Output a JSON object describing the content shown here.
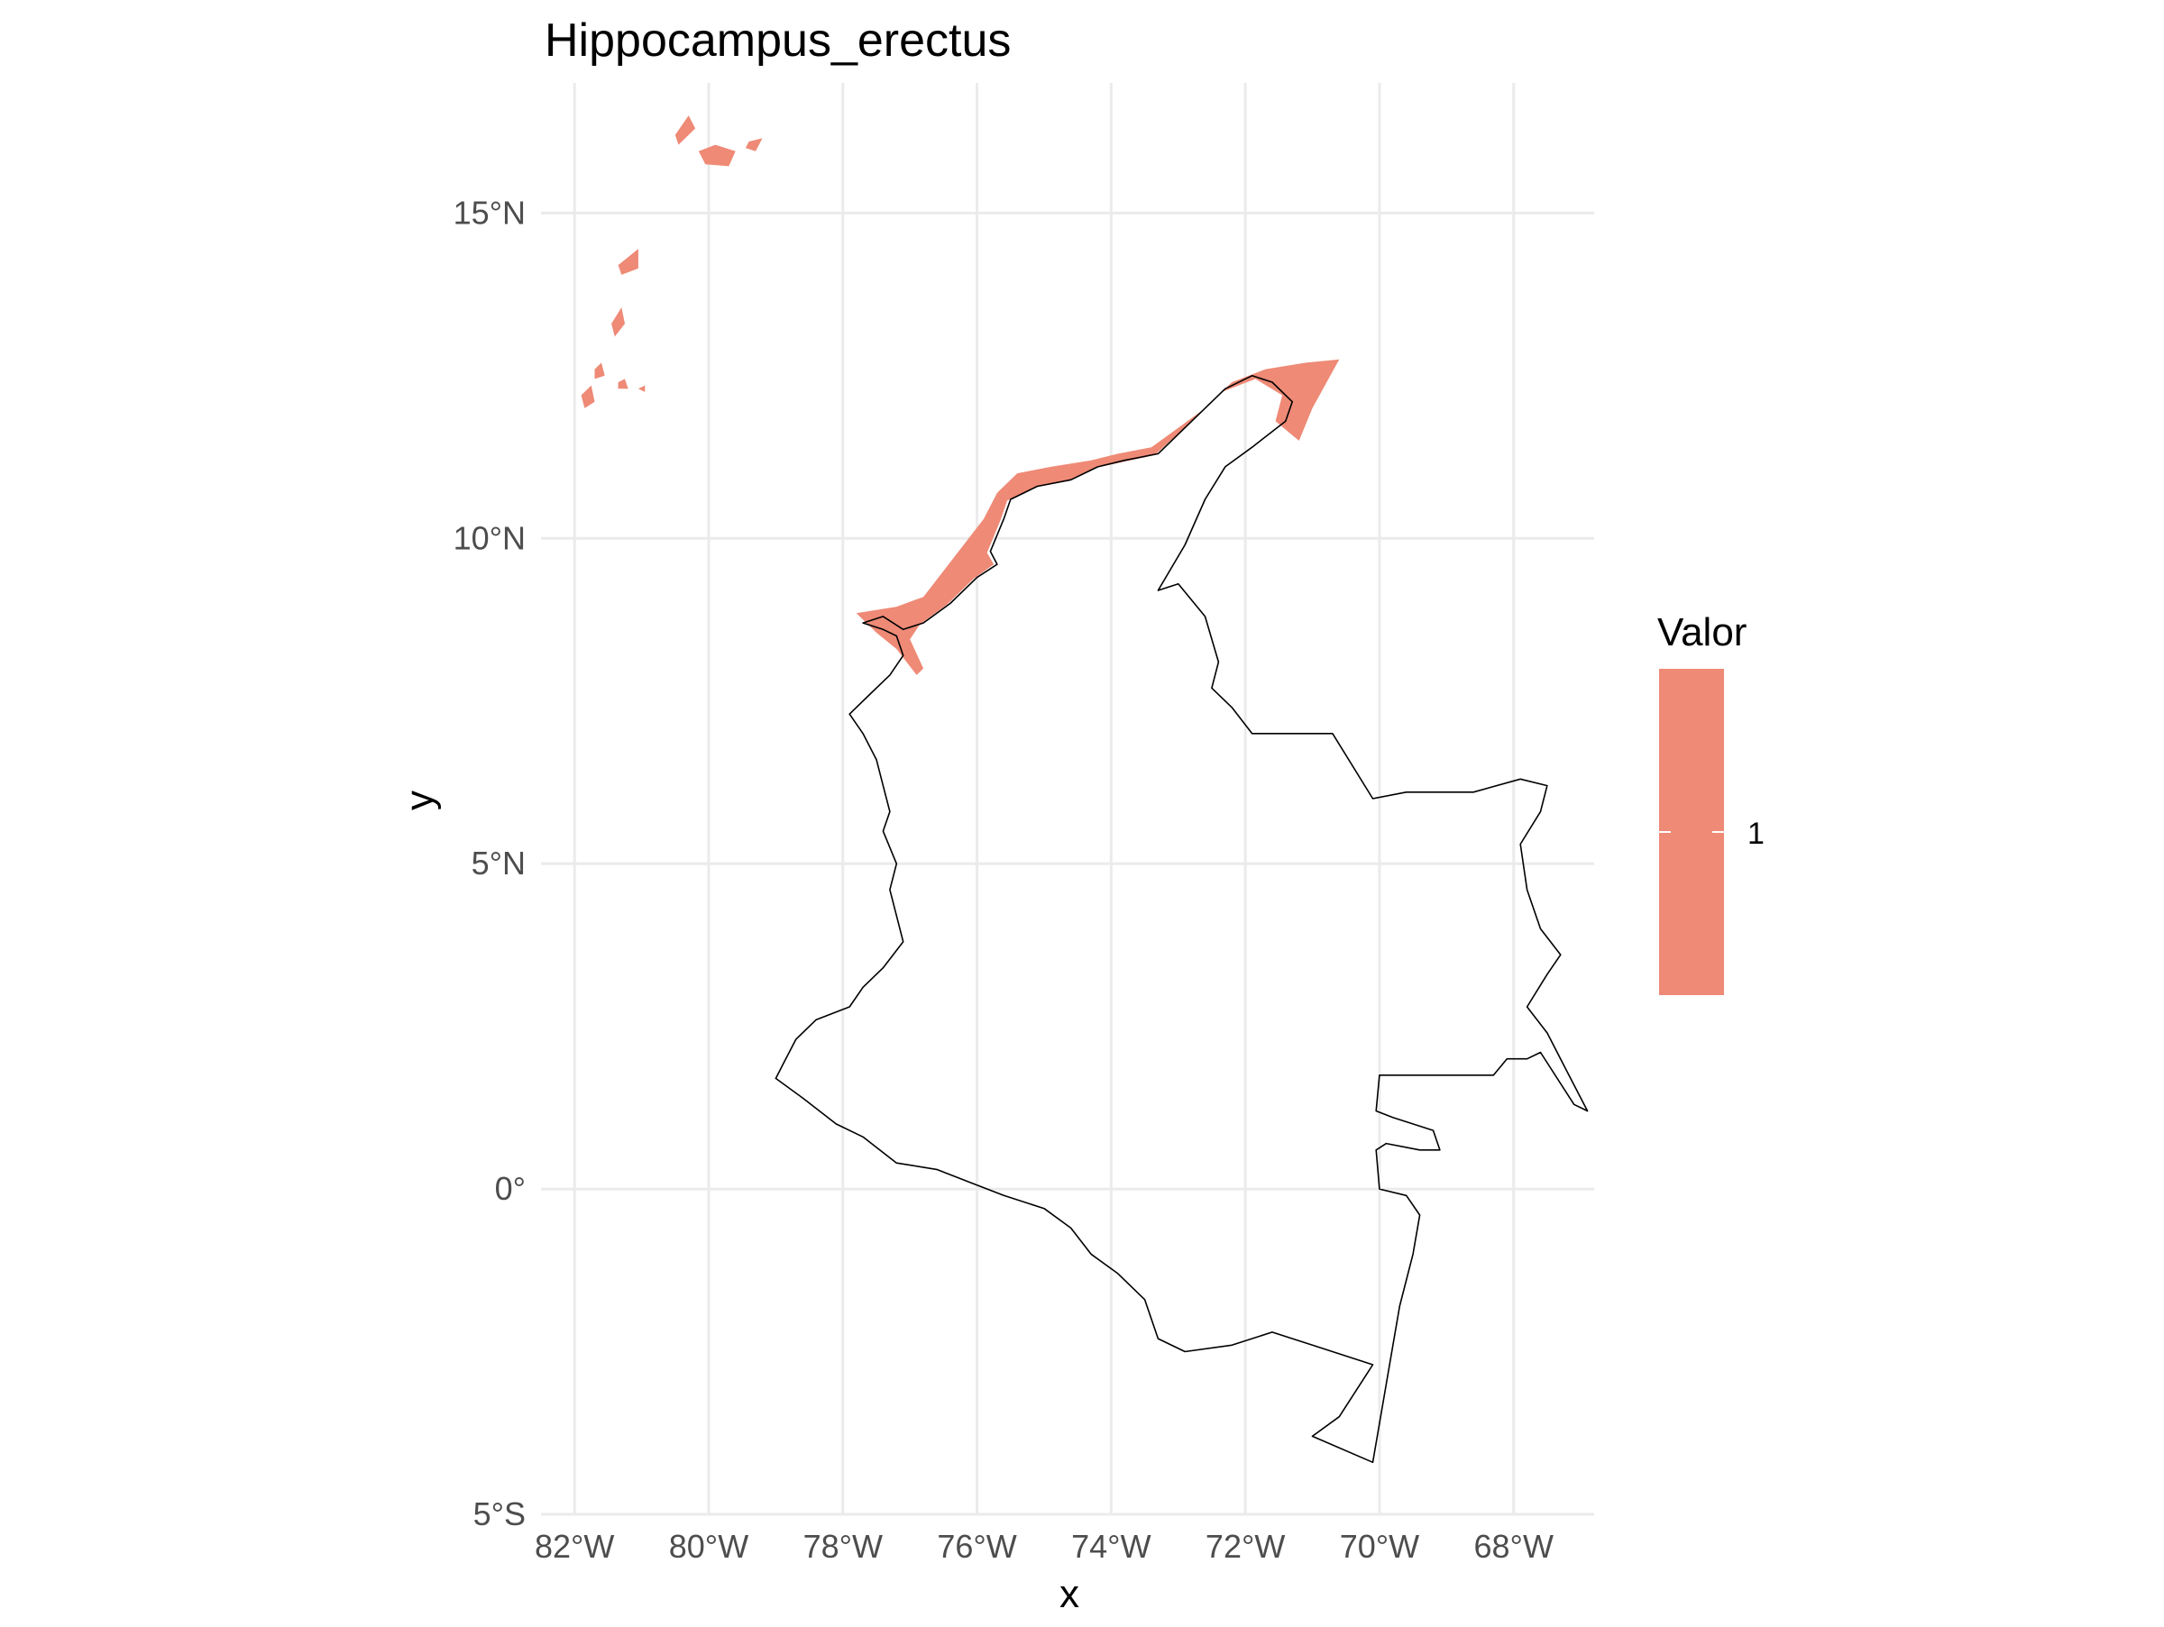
{
  "title": "Hippocampus_erectus",
  "x_axis_title": "x",
  "y_axis_title": "y",
  "legend": {
    "title": "Valor",
    "label": "1",
    "color": "#ee8a76"
  },
  "colors": {
    "background": "#ffffff",
    "grid": "#ebebeb",
    "outline": "#000000"
  },
  "chart_data": {
    "type": "map",
    "title": "Hippocampus_erectus",
    "xlabel": "x",
    "ylabel": "y",
    "xlim": [
      -82.5,
      -66.8
    ],
    "ylim": [
      -5.0,
      17.0
    ],
    "x_ticks": [
      {
        "value": -82,
        "label": "82°W"
      },
      {
        "value": -80,
        "label": "80°W"
      },
      {
        "value": -78,
        "label": "78°W"
      },
      {
        "value": -76,
        "label": "76°W"
      },
      {
        "value": -74,
        "label": "74°W"
      },
      {
        "value": -72,
        "label": "72°W"
      },
      {
        "value": -70,
        "label": "70°W"
      },
      {
        "value": -68,
        "label": "68°W"
      }
    ],
    "y_ticks": [
      {
        "value": 15,
        "label": "15°N"
      },
      {
        "value": 10,
        "label": "10°N"
      },
      {
        "value": 5,
        "label": "5°N"
      },
      {
        "value": 0,
        "label": "0°"
      },
      {
        "value": -5,
        "label": "5°S"
      }
    ],
    "grid": true,
    "legend_position": "right",
    "fill_value": 1,
    "fill_color": "#ee8a76",
    "outline_lonlat": [
      [
        -77.7,
        8.7
      ],
      [
        -77.4,
        8.6
      ],
      [
        -77.2,
        8.5
      ],
      [
        -77.1,
        8.2
      ],
      [
        -77.3,
        7.9
      ],
      [
        -77.6,
        7.6
      ],
      [
        -77.9,
        7.3
      ],
      [
        -77.7,
        7.0
      ],
      [
        -77.5,
        6.6
      ],
      [
        -77.4,
        6.2
      ],
      [
        -77.3,
        5.8
      ],
      [
        -77.4,
        5.5
      ],
      [
        -77.2,
        5.0
      ],
      [
        -77.3,
        4.6
      ],
      [
        -77.2,
        4.2
      ],
      [
        -77.1,
        3.8
      ],
      [
        -77.4,
        3.4
      ],
      [
        -77.7,
        3.1
      ],
      [
        -77.9,
        2.8
      ],
      [
        -78.4,
        2.6
      ],
      [
        -78.7,
        2.3
      ],
      [
        -78.9,
        1.9
      ],
      [
        -79.0,
        1.7
      ],
      [
        -78.6,
        1.4
      ],
      [
        -78.1,
        1.0
      ],
      [
        -77.7,
        0.8
      ],
      [
        -77.2,
        0.4
      ],
      [
        -76.6,
        0.3
      ],
      [
        -76.1,
        0.1
      ],
      [
        -75.6,
        -0.1
      ],
      [
        -75.0,
        -0.3
      ],
      [
        -74.6,
        -0.6
      ],
      [
        -74.3,
        -1.0
      ],
      [
        -73.9,
        -1.3
      ],
      [
        -73.5,
        -1.7
      ],
      [
        -73.3,
        -2.3
      ],
      [
        -72.9,
        -2.5
      ],
      [
        -72.2,
        -2.4
      ],
      [
        -71.6,
        -2.2
      ],
      [
        -71.0,
        -2.4
      ],
      [
        -70.1,
        -2.7
      ],
      [
        -70.6,
        -3.5
      ],
      [
        -71.0,
        -3.8
      ],
      [
        -70.1,
        -4.2
      ],
      [
        -69.9,
        -3.0
      ],
      [
        -69.7,
        -1.8
      ],
      [
        -69.5,
        -1.0
      ],
      [
        -69.4,
        -0.4
      ],
      [
        -69.6,
        -0.1
      ],
      [
        -70.0,
        -0.0
      ],
      [
        -70.05,
        0.6
      ],
      [
        -69.9,
        0.7
      ],
      [
        -69.4,
        0.6
      ],
      [
        -69.1,
        0.6
      ],
      [
        -69.2,
        0.9
      ],
      [
        -69.8,
        1.1
      ],
      [
        -70.05,
        1.2
      ],
      [
        -70.0,
        1.75
      ],
      [
        -68.3,
        1.75
      ],
      [
        -68.1,
        2.0
      ],
      [
        -67.8,
        2.0
      ],
      [
        -67.6,
        2.1
      ],
      [
        -67.1,
        1.3
      ],
      [
        -66.9,
        1.2
      ],
      [
        -67.2,
        1.8
      ],
      [
        -67.5,
        2.4
      ],
      [
        -67.8,
        2.8
      ],
      [
        -67.5,
        3.3
      ],
      [
        -67.3,
        3.6
      ],
      [
        -67.6,
        4.0
      ],
      [
        -67.8,
        4.6
      ],
      [
        -67.9,
        5.3
      ],
      [
        -67.6,
        5.8
      ],
      [
        -67.5,
        6.2
      ],
      [
        -67.9,
        6.3
      ],
      [
        -68.6,
        6.1
      ],
      [
        -69.2,
        6.1
      ],
      [
        -69.6,
        6.1
      ],
      [
        -70.1,
        6.0
      ],
      [
        -70.7,
        7.0
      ],
      [
        -71.4,
        7.0
      ],
      [
        -71.9,
        7.0
      ],
      [
        -72.2,
        7.4
      ],
      [
        -72.5,
        7.7
      ],
      [
        -72.4,
        8.1
      ],
      [
        -72.6,
        8.8
      ],
      [
        -73.0,
        9.3
      ],
      [
        -73.3,
        9.2
      ],
      [
        -72.9,
        9.9
      ],
      [
        -72.6,
        10.6
      ],
      [
        -72.3,
        11.1
      ],
      [
        -71.9,
        11.4
      ],
      [
        -71.4,
        11.8
      ],
      [
        -71.3,
        12.1
      ],
      [
        -71.6,
        12.4
      ],
      [
        -71.9,
        12.5
      ],
      [
        -72.3,
        12.3
      ],
      [
        -72.7,
        11.9
      ],
      [
        -73.3,
        11.3
      ],
      [
        -73.8,
        11.2
      ],
      [
        -74.2,
        11.1
      ],
      [
        -74.6,
        10.9
      ],
      [
        -75.1,
        10.8
      ],
      [
        -75.5,
        10.6
      ],
      [
        -75.6,
        10.3
      ],
      [
        -75.8,
        9.8
      ],
      [
        -75.7,
        9.6
      ],
      [
        -76.0,
        9.4
      ],
      [
        -76.4,
        9.0
      ],
      [
        -76.8,
        8.7
      ],
      [
        -77.1,
        8.6
      ],
      [
        -77.4,
        8.8
      ],
      [
        -77.7,
        8.7
      ]
    ],
    "range_lonlat": [
      [
        [
          -77.8,
          8.85
        ],
        [
          -77.2,
          8.95
        ],
        [
          -76.8,
          9.1
        ],
        [
          -76.5,
          9.5
        ],
        [
          -76.2,
          9.9
        ],
        [
          -75.9,
          10.3
        ],
        [
          -75.7,
          10.7
        ],
        [
          -75.4,
          11.0
        ],
        [
          -74.9,
          11.1
        ],
        [
          -74.3,
          11.2
        ],
        [
          -73.9,
          11.3
        ],
        [
          -73.4,
          11.4
        ],
        [
          -73.0,
          11.7
        ],
        [
          -72.6,
          12.0
        ],
        [
          -72.2,
          12.4
        ],
        [
          -71.7,
          12.6
        ],
        [
          -71.1,
          12.7
        ],
        [
          -70.6,
          12.75
        ],
        [
          -71.0,
          12.0
        ],
        [
          -71.2,
          11.5
        ],
        [
          -71.55,
          11.8
        ],
        [
          -71.45,
          12.2
        ],
        [
          -71.85,
          12.45
        ],
        [
          -72.35,
          12.25
        ],
        [
          -72.75,
          11.85
        ],
        [
          -73.35,
          11.28
        ],
        [
          -73.8,
          11.18
        ],
        [
          -74.25,
          11.08
        ],
        [
          -74.65,
          10.88
        ],
        [
          -75.15,
          10.78
        ],
        [
          -75.55,
          10.58
        ],
        [
          -75.65,
          10.28
        ],
        [
          -75.85,
          9.78
        ],
        [
          -75.75,
          9.6
        ],
        [
          -76.05,
          9.38
        ],
        [
          -76.45,
          8.98
        ],
        [
          -76.85,
          8.68
        ],
        [
          -77.0,
          8.45
        ],
        [
          -76.8,
          8.0
        ],
        [
          -76.9,
          7.9
        ],
        [
          -77.2,
          8.3
        ],
        [
          -77.5,
          8.55
        ],
        [
          -77.8,
          8.85
        ]
      ],
      [
        [
          -80.5,
          16.2
        ],
        [
          -80.3,
          16.5
        ],
        [
          -80.2,
          16.3
        ],
        [
          -80.45,
          16.05
        ],
        [
          -80.5,
          16.2
        ]
      ],
      [
        [
          -80.15,
          15.95
        ],
        [
          -79.9,
          16.05
        ],
        [
          -79.6,
          15.95
        ],
        [
          -79.7,
          15.72
        ],
        [
          -80.05,
          15.75
        ],
        [
          -80.15,
          15.95
        ]
      ],
      [
        [
          -79.4,
          16.1
        ],
        [
          -79.2,
          16.15
        ],
        [
          -79.3,
          15.95
        ],
        [
          -79.45,
          16.0
        ],
        [
          -79.4,
          16.1
        ]
      ],
      [
        [
          -81.35,
          14.2
        ],
        [
          -81.05,
          14.45
        ],
        [
          -81.05,
          14.15
        ],
        [
          -81.3,
          14.05
        ],
        [
          -81.35,
          14.2
        ]
      ],
      [
        [
          -81.45,
          13.3
        ],
        [
          -81.3,
          13.55
        ],
        [
          -81.25,
          13.3
        ],
        [
          -81.4,
          13.1
        ],
        [
          -81.45,
          13.3
        ]
      ],
      [
        [
          -81.7,
          12.6
        ],
        [
          -81.6,
          12.7
        ],
        [
          -81.55,
          12.5
        ],
        [
          -81.7,
          12.45
        ],
        [
          -81.7,
          12.6
        ]
      ],
      [
        [
          -81.9,
          12.2
        ],
        [
          -81.75,
          12.35
        ],
        [
          -81.7,
          12.1
        ],
        [
          -81.85,
          12.0
        ],
        [
          -81.9,
          12.2
        ]
      ],
      [
        [
          -81.35,
          12.4
        ],
        [
          -81.25,
          12.45
        ],
        [
          -81.2,
          12.3
        ],
        [
          -81.35,
          12.3
        ],
        [
          -81.35,
          12.4
        ]
      ],
      [
        [
          -81.05,
          12.3
        ],
        [
          -80.95,
          12.35
        ],
        [
          -80.95,
          12.25
        ],
        [
          -81.05,
          12.3
        ]
      ]
    ]
  }
}
